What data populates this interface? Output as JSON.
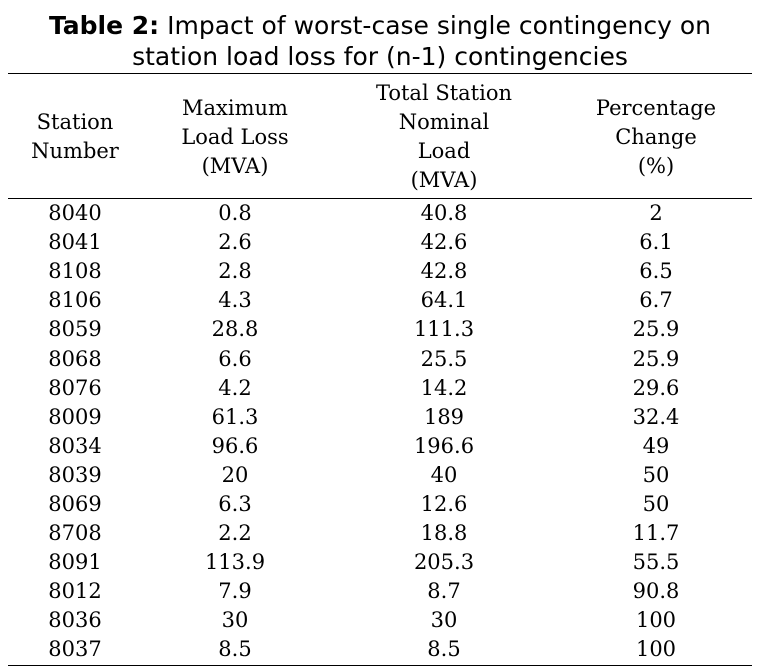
{
  "caption": {
    "label": "Table 2:",
    "title": "Impact of worst-case single contingency on",
    "title_line2": "station load loss for (n-1) contingencies"
  },
  "table": {
    "headers": [
      [
        "Station",
        "Number"
      ],
      [
        "Maximum",
        "Load Loss",
        "(MVA)"
      ],
      [
        "Total Station Nominal",
        "Load",
        "(MVA)"
      ],
      [
        "Percentage",
        "Change",
        "(%)"
      ]
    ],
    "rows": [
      [
        "8040",
        "0.8",
        "40.8",
        "2"
      ],
      [
        "8041",
        "2.6",
        "42.6",
        "6.1"
      ],
      [
        "8108",
        "2.8",
        "42.8",
        "6.5"
      ],
      [
        "8106",
        "4.3",
        "64.1",
        "6.7"
      ],
      [
        "8059",
        "28.8",
        "111.3",
        "25.9"
      ],
      [
        "8068",
        "6.6",
        "25.5",
        "25.9"
      ],
      [
        "8076",
        "4.2",
        "14.2",
        "29.6"
      ],
      [
        "8009",
        "61.3",
        "189",
        "32.4"
      ],
      [
        "8034",
        "96.6",
        "196.6",
        "49"
      ],
      [
        "8039",
        "20",
        "40",
        "50"
      ],
      [
        "8069",
        "6.3",
        "12.6",
        "50"
      ],
      [
        "8708",
        "2.2",
        "18.8",
        "11.7"
      ],
      [
        "8091",
        "113.9",
        "205.3",
        "55.5"
      ],
      [
        "8012",
        "7.9",
        "8.7",
        "90.8"
      ],
      [
        "8036",
        "30",
        "30",
        "100"
      ],
      [
        "8037",
        "8.5",
        "8.5",
        "100"
      ]
    ]
  }
}
